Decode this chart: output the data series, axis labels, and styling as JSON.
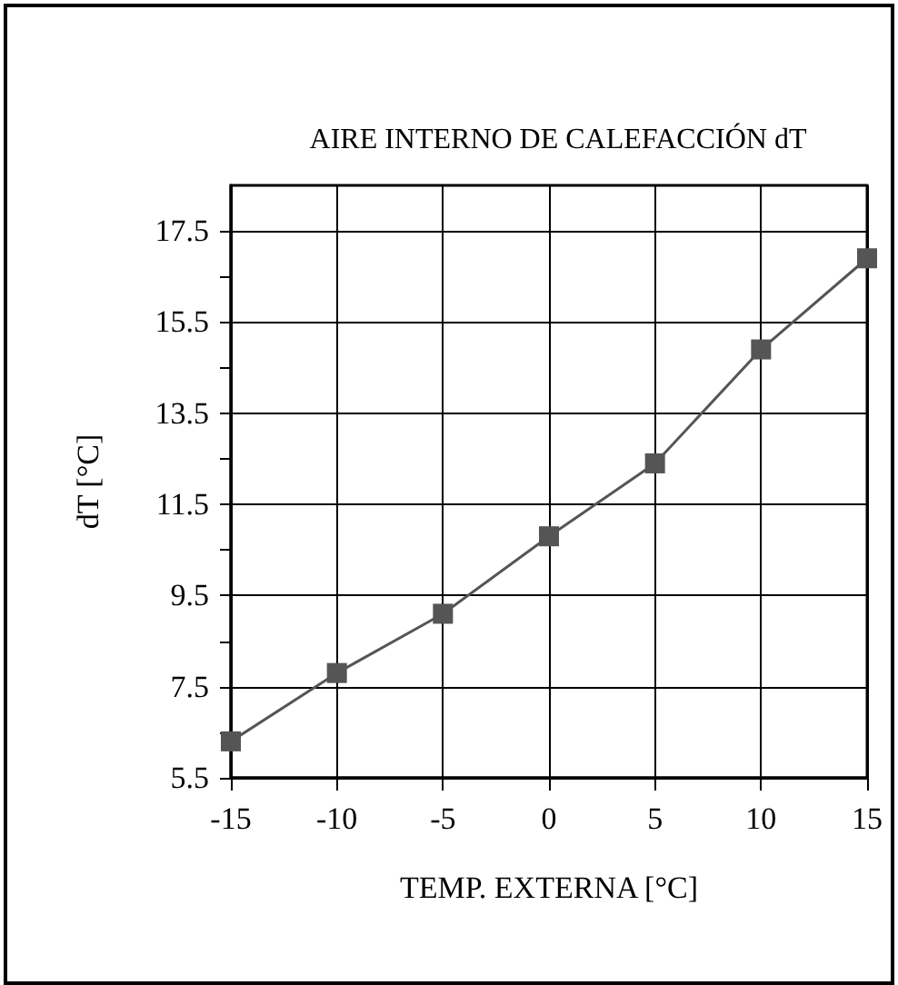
{
  "chart_data": {
    "type": "line",
    "title": "AIRE INTERNO DE CALEFACCIÓN dT",
    "xlabel": "TEMP. EXTERNA [°C]",
    "ylabel": "dT [°C]",
    "x": [
      -15,
      -10,
      -5,
      0,
      5,
      10,
      15
    ],
    "series": [
      {
        "color": "#555555",
        "values": [
          6.3,
          7.8,
          9.1,
          10.8,
          12.4,
          14.9,
          16.9
        ]
      }
    ],
    "xlim": [
      -15,
      15
    ],
    "xticks": [
      -15,
      -10,
      -5,
      0,
      5,
      10,
      15
    ],
    "ylim": [
      5.5,
      18.5
    ],
    "yticks": [
      5.5,
      {
        "value": 6.5,
        "label": null
      },
      7.5,
      {
        "value": 8.5,
        "label": null
      },
      9.5,
      {
        "value": 10.5,
        "label": null
      },
      11.5,
      {
        "value": 12.5,
        "label": null
      },
      13.5,
      {
        "value": 14.5,
        "label": null
      },
      15.5,
      {
        "value": 16.5,
        "label": null
      },
      17.5
    ],
    "grid": true,
    "marker": "square",
    "line_style": "solid"
  }
}
